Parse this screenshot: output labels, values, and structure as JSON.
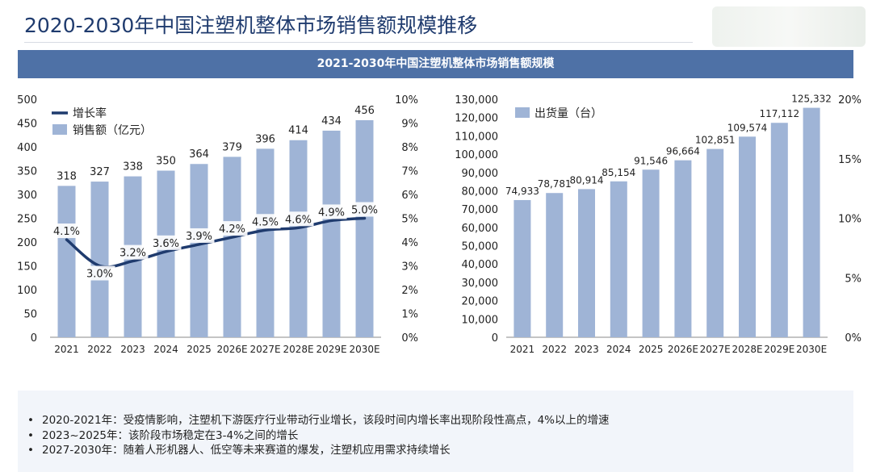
{
  "page": {
    "title": "2020-2030年中国注塑机整体市场销售额规模推移",
    "banner": "2021-2030年中国注塑机整体市场销售额规模"
  },
  "colors": {
    "bar": "#9fb4d6",
    "line": "#1f3b6e",
    "banner": "#4e71a6",
    "title": "#1f3b6e"
  },
  "chart_data": [
    {
      "type": "bar+line",
      "categories": [
        "2021",
        "2022",
        "2023",
        "2024",
        "2025",
        "2026E",
        "2027E",
        "2028E",
        "2029E",
        "2030E"
      ],
      "series": [
        {
          "name": "销售额（亿元）",
          "type": "bar",
          "axis": "left",
          "values": [
            318,
            327,
            338,
            350,
            364,
            379,
            396,
            414,
            434,
            456
          ]
        },
        {
          "name": "增长率",
          "type": "line",
          "axis": "right",
          "values": [
            4.1,
            3.0,
            3.2,
            3.6,
            3.9,
            4.2,
            4.5,
            4.6,
            4.9,
            5.0
          ],
          "labels": [
            "4.1%",
            "3.0%",
            "3.2%",
            "3.6%",
            "3.9%",
            "4.2%",
            "4.5%",
            "4.6%",
            "4.9%",
            "5.0%"
          ]
        }
      ],
      "legend": [
        "增长率",
        "销售额（亿元）"
      ],
      "y_left": {
        "min": 0,
        "max": 500,
        "ticks": [
          "0",
          "50",
          "100",
          "150",
          "200",
          "250",
          "300",
          "350",
          "400",
          "450",
          "500"
        ]
      },
      "y_right": {
        "min": 0,
        "max": 10,
        "ticks": [
          "0%",
          "1%",
          "2%",
          "3%",
          "4%",
          "5%",
          "6%",
          "7%",
          "8%",
          "9%",
          "10%"
        ]
      }
    },
    {
      "type": "bar",
      "categories": [
        "2021",
        "2022",
        "2023",
        "2024",
        "2025",
        "2026E",
        "2027E",
        "2028E",
        "2029E",
        "2030E"
      ],
      "series": [
        {
          "name": "出货量（台）",
          "type": "bar",
          "axis": "left",
          "values": [
            74933,
            78781,
            80914,
            85154,
            91546,
            96664,
            102851,
            109574,
            117112,
            125332
          ],
          "labels": [
            "74,933",
            "78,781",
            "80,914",
            "85,154",
            "91,546",
            "96,664",
            "102,851",
            "109,574",
            "117,112",
            "125,332"
          ]
        }
      ],
      "legend": [
        "出货量（台）"
      ],
      "y_left": {
        "min": 0,
        "max": 130000,
        "ticks": [
          "0",
          "10,000",
          "20,000",
          "30,000",
          "40,000",
          "50,000",
          "60,000",
          "70,000",
          "80,000",
          "90,000",
          "100,000",
          "110,000",
          "120,000",
          "130,000"
        ]
      },
      "y_right": {
        "min": 0,
        "max": 20,
        "ticks": [
          "0%",
          "5%",
          "10%",
          "15%",
          "20%"
        ]
      }
    }
  ],
  "notes": [
    "2020-2021年：受疫情影响，注塑机下游医疗行业带动行业增长，该段时间内增长率出现阶段性高点，4%以上的增速",
    "2023~2025年：该阶段市场稳定在3-4%之间的增长",
    "2027-2030年：随着人形机器人、低空等未来赛道的爆发，注塑机应用需求持续增长"
  ]
}
